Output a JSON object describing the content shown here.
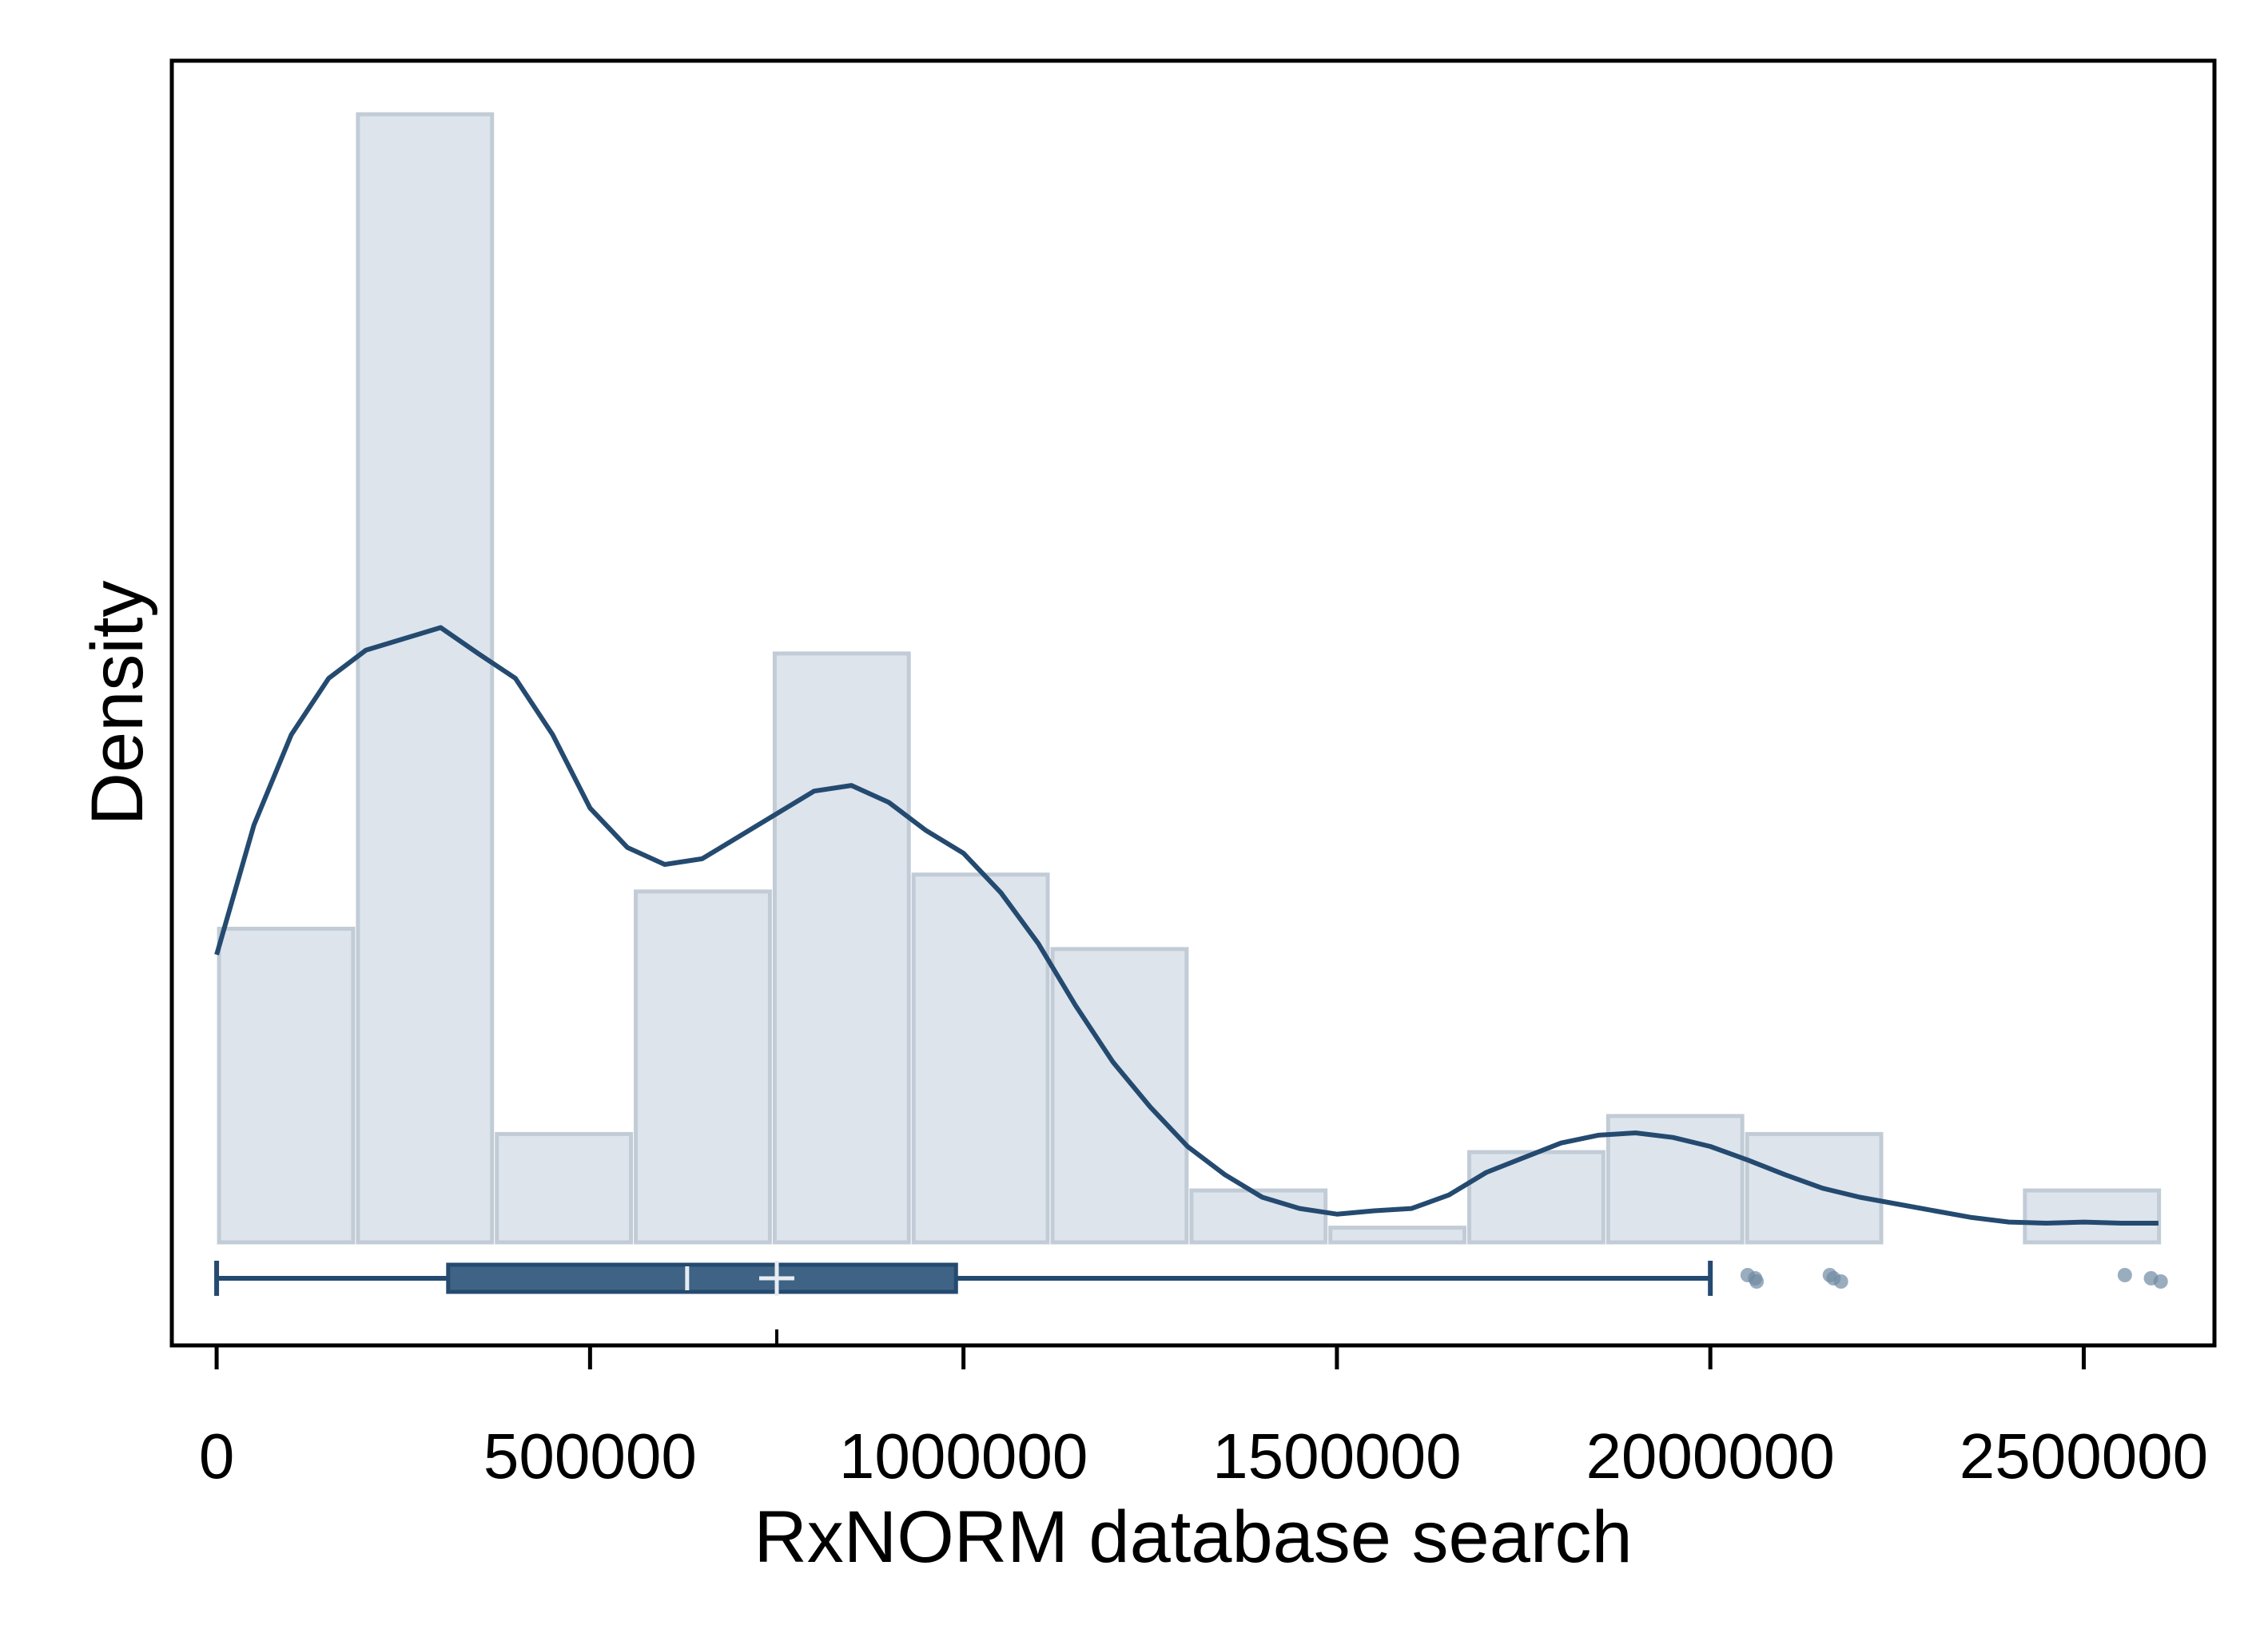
{
  "chart_data": {
    "type": "histogram",
    "title": "",
    "xlabel": "RxNORM database search",
    "ylabel": "Density",
    "xlim": [
      -60000,
      2675000
    ],
    "ylim": [
      0,
      1.18
    ],
    "x_ticks": [
      {
        "value": 0,
        "label": "0"
      },
      {
        "value": 500000,
        "label": "500000"
      },
      {
        "value": 1000000,
        "label": "1000000"
      },
      {
        "value": 1500000,
        "label": "1500000"
      },
      {
        "value": 2000000,
        "label": "2000000"
      },
      {
        "value": 2500000,
        "label": "2500000"
      }
    ],
    "y_ticks_shown": false,
    "grid": false,
    "colors": {
      "bar_fill": "#dde4ec",
      "bar_stroke": "#c2ccd6",
      "line": "#244a70",
      "box_fill": "#3e6384",
      "outlier": "#6f8aa3",
      "axis": "#000000"
    },
    "histogram": {
      "bin_width": 186000,
      "bins": [
        {
          "start": 0,
          "end": 186000,
          "density": 0.278
        },
        {
          "start": 186000,
          "end": 372000,
          "density": 1.0
        },
        {
          "start": 372000,
          "end": 558000,
          "density": 0.096
        },
        {
          "start": 558000,
          "end": 744000,
          "density": 0.311
        },
        {
          "start": 744000,
          "end": 930000,
          "density": 0.522
        },
        {
          "start": 930000,
          "end": 1116000,
          "density": 0.326
        },
        {
          "start": 1116000,
          "end": 1302000,
          "density": 0.26
        },
        {
          "start": 1302000,
          "end": 1488000,
          "density": 0.046
        },
        {
          "start": 1488000,
          "end": 1674000,
          "density": 0.013
        },
        {
          "start": 1674000,
          "end": 1860000,
          "density": 0.08
        },
        {
          "start": 1860000,
          "end": 2046000,
          "density": 0.112
        },
        {
          "start": 2046000,
          "end": 2232000,
          "density": 0.096
        },
        {
          "start": 2232000,
          "end": 2418000,
          "density": 0.0
        },
        {
          "start": 2418000,
          "end": 2604000,
          "density": 0.046
        }
      ]
    },
    "density_curve": {
      "x": [
        0,
        50000,
        100000,
        150000,
        200000,
        250000,
        300000,
        350000,
        400000,
        450000,
        500000,
        550000,
        600000,
        650000,
        700000,
        750000,
        800000,
        850000,
        900000,
        950000,
        1000000,
        1050000,
        1100000,
        1150000,
        1200000,
        1250000,
        1300000,
        1350000,
        1400000,
        1450000,
        1500000,
        1550000,
        1600000,
        1650000,
        1700000,
        1750000,
        1800000,
        1850000,
        1900000,
        1950000,
        2000000,
        2050000,
        2100000,
        2150000,
        2200000,
        2250000,
        2300000,
        2350000,
        2400000,
        2450000,
        2500000,
        2550000,
        2600000
      ],
      "y": [
        0.255,
        0.37,
        0.45,
        0.5,
        0.525,
        0.535,
        0.545,
        0.522,
        0.5,
        0.45,
        0.385,
        0.35,
        0.335,
        0.34,
        0.36,
        0.38,
        0.4,
        0.405,
        0.39,
        0.365,
        0.345,
        0.31,
        0.265,
        0.21,
        0.16,
        0.12,
        0.085,
        0.06,
        0.04,
        0.03,
        0.025,
        0.028,
        0.03,
        0.042,
        0.062,
        0.075,
        0.088,
        0.095,
        0.097,
        0.093,
        0.085,
        0.073,
        0.06,
        0.048,
        0.04,
        0.034,
        0.028,
        0.022,
        0.018,
        0.017,
        0.018,
        0.017,
        0.017
      ]
    },
    "boxplot": {
      "whisker_low": 0,
      "q1": 310000,
      "median": 630000,
      "mean": 750000,
      "q3": 990000,
      "whisker_high": 2000000,
      "outliers": [
        2050000,
        2060000,
        2062000,
        2160000,
        2165000,
        2175000,
        2555000,
        2590000,
        2603000
      ]
    }
  }
}
